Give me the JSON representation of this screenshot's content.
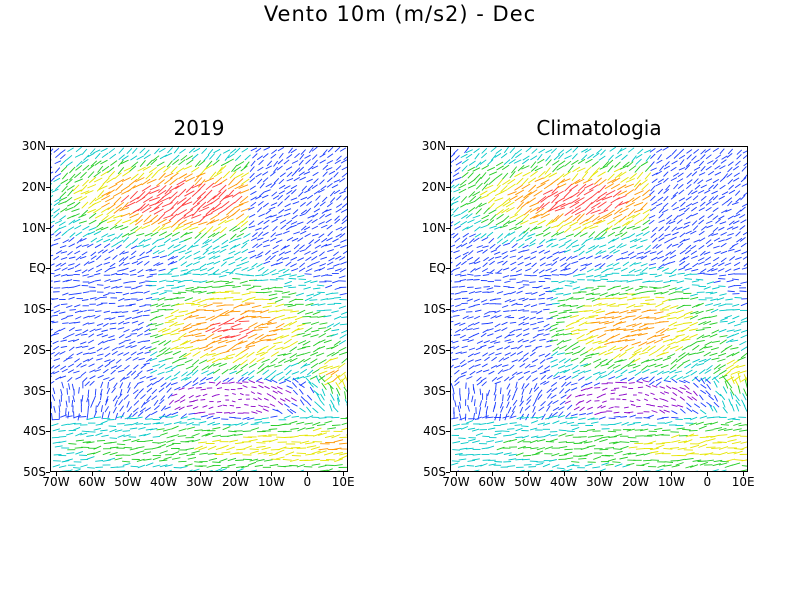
{
  "title": "Vento 10m (m/s2) - Dec",
  "panels": [
    {
      "id": "2019",
      "title": "2019"
    },
    {
      "id": "clim",
      "title": "Climatologia"
    }
  ],
  "lat_labels": [
    "30N",
    "20N",
    "10N",
    "EQ",
    "10S",
    "20S",
    "30S",
    "40S",
    "50S"
  ],
  "lon_labels": [
    "70W",
    "60W",
    "50W",
    "40W",
    "30W",
    "20W",
    "10W",
    "0",
    "10E"
  ],
  "colors": {
    "calm": "#8a00c8",
    "low": "#1a3cff",
    "mid_low": "#00c8c8",
    "mid": "#22cc22",
    "mid_high": "#e6e600",
    "high": "#ff9600",
    "very_high": "#ff3c3c"
  }
}
